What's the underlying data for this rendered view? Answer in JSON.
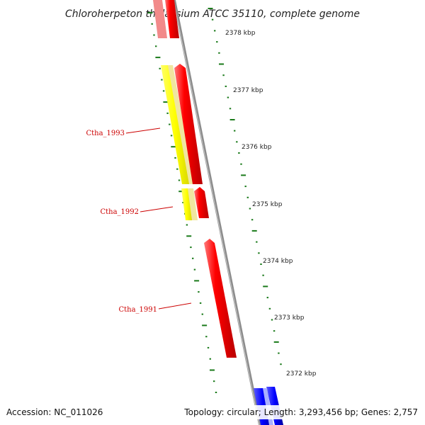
{
  "title": "Chloroherpeton thalassium ATCC 35110, complete genome",
  "footer": {
    "accession": "Accession: NC_011026",
    "summary": "Topology: circular; Length: 3,293,456 bp; Genes: 2,757"
  },
  "scale_labels": [
    "2378 kbp",
    "2377 kbp",
    "2376 kbp",
    "2375 kbp",
    "2374 kbp",
    "2373 kbp",
    "2372 kbp"
  ],
  "gene_labels": [
    "Ctha_1993",
    "Ctha_1992",
    "Ctha_1991"
  ],
  "colors": {
    "backbone": "#8c8c8c",
    "tick": "#1a7a1a",
    "gene_red": "#ff0000",
    "gene_yellow": "#ffff00",
    "gene_blue": "#0000ff",
    "label_red": "#cc0000"
  }
}
